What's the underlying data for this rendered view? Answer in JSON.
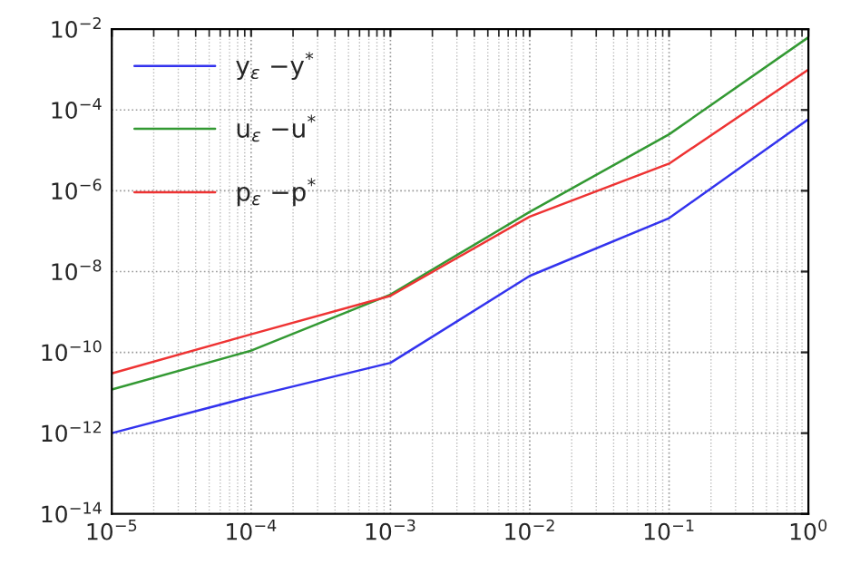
{
  "chart_data": {
    "type": "line",
    "log": "xy",
    "grid": true,
    "legend": "top left",
    "marker": "none",
    "line_style": "solid",
    "x": [
      1e-05,
      0.0001,
      0.001,
      0.01,
      0.1,
      1
    ],
    "xlim": [
      1e-05,
      1
    ],
    "xticks": [
      {
        "value": 1e-05,
        "label": "10$^{−5}$"
      },
      {
        "value": 0.0001,
        "label": "10$^{−4}$"
      },
      {
        "value": 0.001,
        "label": "10$^{−3}$"
      },
      {
        "value": 0.01,
        "label": "10$^{−2}$"
      },
      {
        "value": 0.1,
        "label": "10$^{−1}$"
      },
      {
        "value": 1,
        "label": "10$^{0}$"
      }
    ],
    "ylim": [
      1e-14,
      0.01
    ],
    "yticks": [
      {
        "value": 1e-14,
        "label": "10$^{−14}$"
      },
      {
        "value": 1e-12,
        "label": "10$^{−12}$"
      },
      {
        "value": 1e-10,
        "label": "10$^{−10}$"
      },
      {
        "value": 1e-08,
        "label": "10$^{−8}$"
      },
      {
        "value": 1e-06,
        "label": "10$^{−6}$"
      },
      {
        "value": 0.0001,
        "label": "10$^{−4}$"
      },
      {
        "value": 0.01,
        "label": "10$^{−2}$"
      }
    ],
    "series": [
      {
        "name": "y$_{ε}$ −y$^{*}$",
        "color": "#3333ee",
        "values": [
          1e-12,
          8e-12,
          5.5e-11,
          7.8e-09,
          2.1e-07,
          5.9e-05
        ]
      },
      {
        "name": "u$_{ε}$ −u$^{*}$",
        "color": "#339933",
        "values": [
          1.2e-11,
          1.1e-10,
          2.7e-09,
          3e-07,
          2.5e-05,
          0.0063
        ]
      },
      {
        "name": "p$_{ε}$ −p$^{*}$",
        "color": "#ee3333",
        "values": [
          3e-11,
          2.8e-10,
          2.5e-09,
          2.3e-07,
          4.7e-06,
          0.001
        ]
      }
    ]
  }
}
